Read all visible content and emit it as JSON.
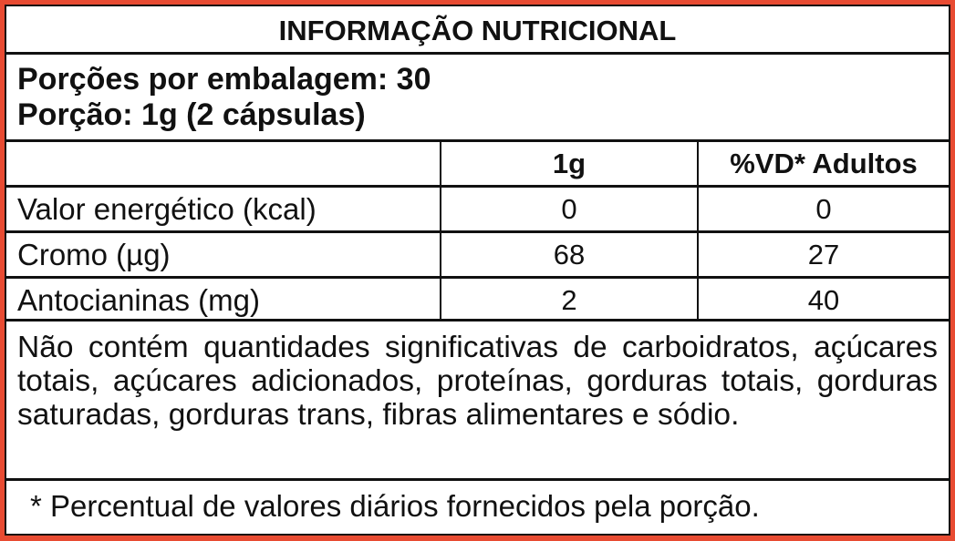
{
  "title": "INFORMAÇÃO NUTRICIONAL",
  "servings_per_package": "Porções por embalagem: 30",
  "serving_size": "Porção: 1g (2 cápsulas)",
  "columns": [
    "",
    "1g",
    "%VD* Adultos"
  ],
  "rows": [
    {
      "name": "Valor energético (kcal)",
      "amount": "0",
      "dv": "0"
    },
    {
      "name": "Cromo (µg)",
      "amount": "68",
      "dv": "27"
    },
    {
      "name": "Antocianinas (mg)",
      "amount": "2",
      "dv": "40"
    }
  ],
  "note": "Não contém quantidades significativas de carboidratos, açúcares totais, açúcares adicionados, proteínas, gorduras totais, gorduras saturadas, gorduras trans, fibras alimentares e sódio.",
  "footnote": "* Percentual de valores diários fornecidos pela porção.",
  "colors": {
    "frame": "#E84B32",
    "border": "#111111"
  }
}
